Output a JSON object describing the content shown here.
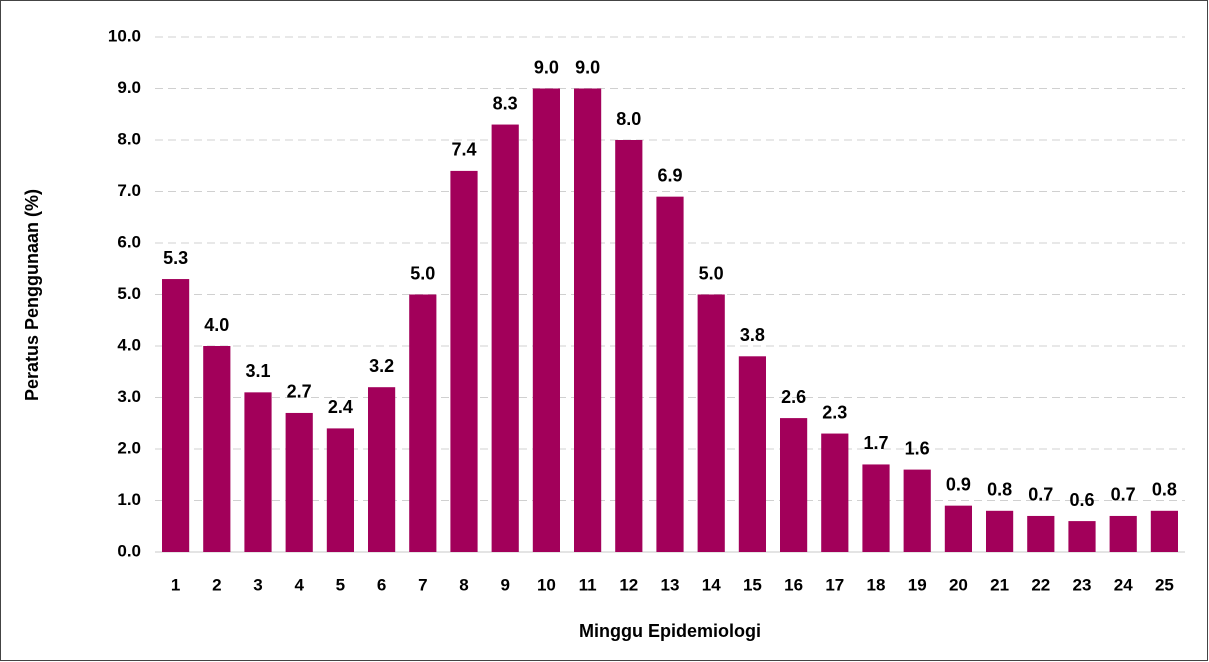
{
  "chart_data": {
    "type": "bar",
    "x_label": "Minggu Epidemiologi",
    "y_label": "Peratus Penggunaan (%)",
    "categories": [
      "1",
      "2",
      "3",
      "4",
      "5",
      "6",
      "7",
      "8",
      "9",
      "10",
      "11",
      "12",
      "13",
      "14",
      "15",
      "16",
      "17",
      "18",
      "19",
      "20",
      "21",
      "22",
      "23",
      "24",
      "25"
    ],
    "values": [
      5.3,
      4.0,
      3.1,
      2.7,
      2.4,
      3.2,
      5.0,
      7.4,
      8.3,
      9.0,
      9.0,
      8.0,
      6.9,
      5.0,
      3.8,
      2.6,
      2.3,
      1.7,
      1.6,
      0.9,
      0.8,
      0.7,
      0.6,
      0.7,
      0.8
    ],
    "value_labels": [
      "5.3",
      "4.0",
      "3.1",
      "2.7",
      "2.4",
      "3.2",
      "5.0",
      "7.4",
      "8.3",
      "9.0",
      "9.0",
      "8.0",
      "6.9",
      "5.0",
      "3.8",
      "2.6",
      "2.3",
      "1.7",
      "1.6",
      "0.9",
      "0.8",
      "0.7",
      "0.6",
      "0.7",
      "0.8"
    ],
    "color": "#a2005a",
    "ylim": [
      0,
      10
    ],
    "yticks": [
      {
        "value": 0,
        "label": "0.0"
      },
      {
        "value": 1,
        "label": "1.0"
      },
      {
        "value": 2,
        "label": "2.0"
      },
      {
        "value": 3,
        "label": "3.0"
      },
      {
        "value": 4,
        "label": "4.0"
      },
      {
        "value": 5,
        "label": "5.0"
      },
      {
        "value": 6,
        "label": "6.0"
      },
      {
        "value": 7,
        "label": "7.0"
      },
      {
        "value": 8,
        "label": "8.0"
      },
      {
        "value": 9,
        "label": "9.0"
      },
      {
        "value": 10,
        "label": "10.0"
      }
    ],
    "grid": true
  }
}
